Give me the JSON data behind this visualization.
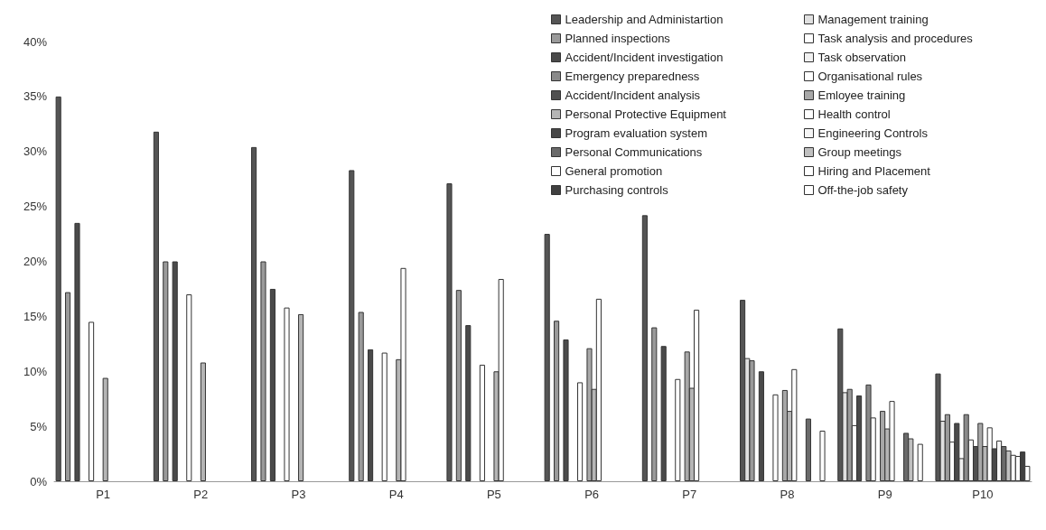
{
  "chart_data": {
    "type": "bar",
    "categories": [
      "P1",
      "P2",
      "P3",
      "P4",
      "P5",
      "P6",
      "P7",
      "P8",
      "P9",
      "P10"
    ],
    "ylim": [
      0,
      40
    ],
    "yticks": [
      {
        "value": 0,
        "label": "0%"
      },
      {
        "value": 5,
        "label": "5%"
      },
      {
        "value": 10,
        "label": "10%"
      },
      {
        "value": 15,
        "label": "15%"
      },
      {
        "value": 20,
        "label": "20%"
      },
      {
        "value": 25,
        "label": "25%"
      },
      {
        "value": 30,
        "label": "30%"
      },
      {
        "value": 35,
        "label": "35%"
      },
      {
        "value": 40,
        "label": "40%"
      }
    ],
    "grid": false,
    "legend": "top right",
    "series": [
      {
        "name": "Leadership and Administartion",
        "color": "#555555",
        "values": [
          35,
          31.8,
          30.4,
          28.3,
          27.1,
          22.5,
          24.2,
          16.5,
          13.9,
          9.8
        ]
      },
      {
        "name": "Management training",
        "color": "#e0e0e0",
        "values": [
          null,
          null,
          null,
          null,
          null,
          null,
          null,
          11.2,
          8.1,
          5.5
        ]
      },
      {
        "name": "Planned inspections",
        "color": "#9a9a9a",
        "values": [
          17.2,
          20,
          20,
          15.4,
          17.4,
          14.6,
          14,
          11,
          8.4,
          6.1
        ]
      },
      {
        "name": "Task analysis and procedures",
        "color": "#ffffff",
        "values": [
          null,
          null,
          null,
          null,
          null,
          null,
          null,
          null,
          5.1,
          3.6
        ]
      },
      {
        "name": "Accident/Incident investigation",
        "color": "#4a4a4a",
        "values": [
          23.5,
          20,
          17.5,
          12,
          14.2,
          12.9,
          12.3,
          10,
          7.8,
          5.3
        ]
      },
      {
        "name": "Task observation",
        "color": "#f0f0f0",
        "values": [
          null,
          null,
          null,
          null,
          null,
          null,
          null,
          null,
          null,
          2.1
        ]
      },
      {
        "name": "Emergency preparedness",
        "color": "#8a8a8a",
        "values": [
          null,
          null,
          null,
          null,
          null,
          null,
          null,
          null,
          8.8,
          6.1
        ]
      },
      {
        "name": "Organisational rules",
        "color": "#ffffff",
        "values": [
          14.5,
          17,
          15.8,
          11.7,
          10.6,
          9,
          9.3,
          7.9,
          5.8,
          3.8
        ]
      },
      {
        "name": "Accident/Incident analysis",
        "color": "#505050",
        "values": [
          null,
          null,
          null,
          null,
          null,
          null,
          null,
          null,
          null,
          3.2
        ]
      },
      {
        "name": "Emloyee training",
        "color": "#a8a8a8",
        "values": [
          null,
          null,
          null,
          null,
          null,
          12.1,
          11.8,
          8.3,
          6.4,
          5.3
        ]
      },
      {
        "name": "Personal Protective Equipment",
        "color": "#b5b5b5",
        "values": [
          9.4,
          10.8,
          15.2,
          11.1,
          10,
          8.4,
          8.5,
          6.4,
          4.8,
          3.2
        ]
      },
      {
        "name": "Health control",
        "color": "#ffffff",
        "values": [
          null,
          null,
          null,
          19.4,
          18.4,
          16.6,
          15.6,
          10.2,
          7.3,
          4.9
        ]
      },
      {
        "name": "Program evaluation system",
        "color": "#484848",
        "values": [
          null,
          null,
          null,
          null,
          null,
          null,
          null,
          null,
          null,
          3
        ]
      },
      {
        "name": "Engineering Controls",
        "color": "#f5f5f5",
        "values": [
          null,
          null,
          null,
          null,
          null,
          null,
          null,
          null,
          null,
          3.7
        ]
      },
      {
        "name": "Personal Communications",
        "color": "#6a6a6a",
        "values": [
          null,
          null,
          null,
          null,
          null,
          null,
          null,
          5.7,
          4.4,
          3.2
        ]
      },
      {
        "name": "Group meetings",
        "color": "#c0c0c0",
        "values": [
          null,
          null,
          null,
          null,
          null,
          null,
          null,
          null,
          3.9,
          2.8
        ]
      },
      {
        "name": "General promotion",
        "color": "#ffffff",
        "values": [
          null,
          null,
          null,
          null,
          null,
          null,
          null,
          null,
          null,
          2.4
        ]
      },
      {
        "name": "Hiring and Placement",
        "color": "#ffffff",
        "values": [
          null,
          null,
          null,
          null,
          null,
          null,
          null,
          4.6,
          3.4,
          2.3
        ]
      },
      {
        "name": "Purchasing controls",
        "color": "#404040",
        "values": [
          null,
          null,
          null,
          null,
          null,
          null,
          null,
          null,
          null,
          2.7
        ]
      },
      {
        "name": "Off-the-job safety",
        "color": "#ffffff",
        "values": [
          null,
          null,
          null,
          null,
          null,
          null,
          null,
          null,
          null,
          1.4
        ]
      }
    ]
  }
}
